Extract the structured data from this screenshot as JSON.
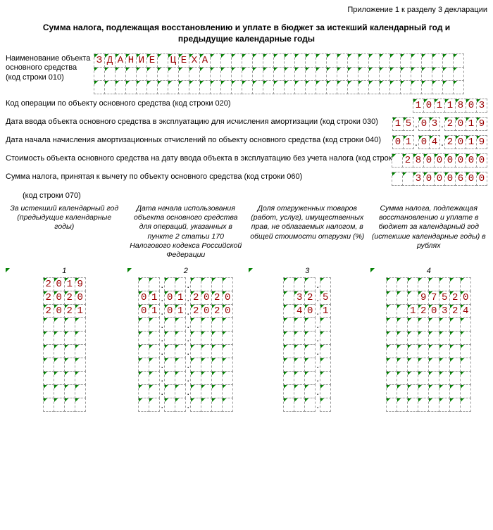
{
  "appendix": "Приложение 1 к разделу 3 декларации",
  "title": "Сумма налога, подлежащая восстановлению и уплате в бюджет за истекший календарный год и предыдущие календарные годы",
  "name_label": "Наименование объекта основного средства (код строки 010)",
  "name_value": "ЗДАНИЕ ЦЕХА",
  "lines": [
    {
      "txt": "Код операции по объекту основного средства (код строки 020)",
      "val": "1011803",
      "w": 7,
      "date": false
    },
    {
      "txt": "Дата ввода объекта основного средства в эксплуатацию для исчисления амортизации (код строки 030)",
      "d": "15",
      "m": "03",
      "y": "2019",
      "date": true
    },
    {
      "txt": "Дата начала начисления амортизационных отчислений по объекту основного средства (код строки 040)",
      "d": "01",
      "m": "04",
      "y": "2019",
      "date": true
    },
    {
      "txt": "Стоимость объекта основного средства на дату ввода объекта в эксплуатацию без учета налога (код строки 050)",
      "val": " 28000000",
      "w": 9,
      "date": false
    },
    {
      "txt": "Сумма налога, принятая к вычету по объекту основного средства (код строки 060)",
      "val": "  3000600",
      "w": 9,
      "date": false
    }
  ],
  "sub070": "(код строки 070)",
  "headers": [
    "За истекший календарный год (предыдущие календарные годы)",
    "Дата начала использования объекта основного средства для операций, указанных в пункте 2 статьи 170 Налогового кодекса Российской Федерации",
    "Доля отгруженных товаров (работ, услуг), имущественных прав, не облагаемых налогом, в общей стоимости отгрузки (%)",
    "Сумма налога, подлежащая восстановлению и уплате в бюджет за календарный год (истекшие календарные годы) в рублях"
  ],
  "nums": [
    "1",
    "2",
    "3",
    "4"
  ],
  "rows": [
    {
      "y": "2019",
      "d": "",
      "m": "",
      "yy": "",
      "p1": "",
      "p2": "",
      "s": ""
    },
    {
      "y": "2020",
      "d": "01",
      "m": "01",
      "yy": "2020",
      "p1": "32",
      "p2": "5",
      "s": "   97520"
    },
    {
      "y": "2021",
      "d": "01",
      "m": "01",
      "yy": "2020",
      "p1": "40",
      "p2": "1",
      "s": "  120324"
    },
    {
      "y": "",
      "d": "",
      "m": "",
      "yy": "",
      "p1": "",
      "p2": "",
      "s": ""
    },
    {
      "y": "",
      "d": "",
      "m": "",
      "yy": "",
      "p1": "",
      "p2": "",
      "s": ""
    },
    {
      "y": "",
      "d": "",
      "m": "",
      "yy": "",
      "p1": "",
      "p2": "",
      "s": ""
    },
    {
      "y": "",
      "d": "",
      "m": "",
      "yy": "",
      "p1": "",
      "p2": "",
      "s": ""
    },
    {
      "y": "",
      "d": "",
      "m": "",
      "yy": "",
      "p1": "",
      "p2": "",
      "s": ""
    },
    {
      "y": "",
      "d": "",
      "m": "",
      "yy": "",
      "p1": "",
      "p2": "",
      "s": ""
    },
    {
      "y": "",
      "d": "",
      "m": "",
      "yy": "",
      "p1": "",
      "p2": "",
      "s": ""
    }
  ]
}
